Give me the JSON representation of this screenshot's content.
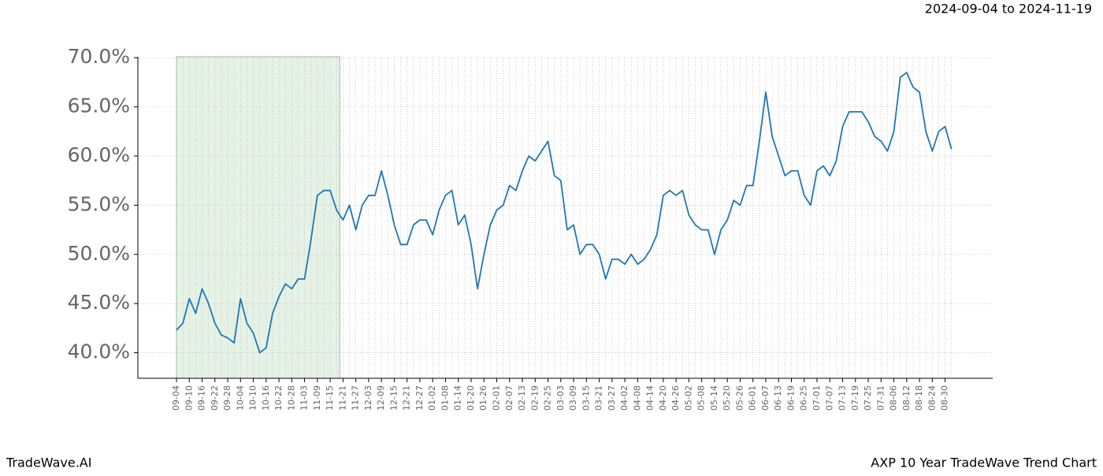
{
  "header": "2024-09-04 to 2024-11-19",
  "footer_left": "TradeWave.AI",
  "footer_right": "AXP 10 Year TradeWave Trend Chart",
  "chart_data": {
    "type": "line",
    "categories": [
      "09-04",
      null,
      "09-10",
      null,
      "09-16",
      null,
      "09-22",
      null,
      "09-28",
      null,
      "10-04",
      null,
      "10-10",
      null,
      "10-16",
      null,
      "10-22",
      null,
      "10-28",
      null,
      "11-03",
      null,
      "11-09",
      null,
      "11-15",
      null,
      "11-21",
      null,
      "11-27",
      null,
      "12-03",
      null,
      "12-09",
      null,
      "12-15",
      null,
      "12-21",
      null,
      "12-27",
      null,
      "01-02",
      null,
      "01-08",
      null,
      "01-14",
      null,
      "01-20",
      null,
      "01-26",
      null,
      "02-01",
      null,
      "02-07",
      null,
      "02-13",
      null,
      "02-19",
      null,
      "02-25",
      null,
      "03-03",
      null,
      "03-09",
      null,
      "03-15",
      null,
      "03-21",
      null,
      "03-27",
      null,
      "04-02",
      null,
      "04-08",
      null,
      "04-14",
      null,
      "04-20",
      null,
      "04-26",
      null,
      "05-02",
      null,
      "05-08",
      null,
      "05-14",
      null,
      "05-20",
      null,
      "05-26",
      null,
      "06-01",
      null,
      "06-07",
      null,
      "06-13",
      null,
      "06-19",
      null,
      "06-25",
      null,
      "07-01",
      null,
      "07-07",
      null,
      "07-13",
      null,
      "07-19",
      null,
      "07-25",
      null,
      "07-31",
      null,
      "08-06",
      null,
      "08-12",
      null,
      "08-18",
      null,
      "08-24",
      null,
      "08-30",
      null
    ],
    "values": [
      42.3,
      43,
      45.5,
      44,
      46.5,
      45,
      43,
      41.8,
      41.5,
      41,
      45.5,
      43,
      42,
      40,
      40.5,
      44,
      45.7,
      47,
      46.5,
      47.5,
      47.5,
      51.5,
      56,
      56.5,
      56.5,
      54.5,
      53.5,
      55,
      52.5,
      55,
      56,
      56,
      58.5,
      56,
      53,
      51,
      51,
      53,
      53.5,
      53.5,
      52,
      54.5,
      56,
      56.5,
      53,
      54,
      51,
      46.5,
      50,
      53,
      54.5,
      55,
      57,
      56.5,
      58.5,
      60,
      59.5,
      60.5,
      61.5,
      58,
      57.5,
      52.5,
      53,
      50,
      51,
      51,
      50,
      47.5,
      49.5,
      49.5,
      49,
      50,
      49,
      49.5,
      50.5,
      52,
      56,
      56.5,
      56,
      56.5,
      54,
      53,
      52.5,
      52.5,
      50,
      52.5,
      53.5,
      55.5,
      55,
      57,
      57,
      61.5,
      66.5,
      62,
      60,
      58,
      58.5,
      58.5,
      56,
      55,
      58.5,
      59,
      58,
      59.5,
      63,
      64.5,
      64.5,
      64.5,
      63.5,
      62,
      61.5,
      60.5,
      62.5,
      68,
      68.5,
      67,
      66.5,
      62.5,
      60.5,
      62.5,
      63,
      60.7
    ],
    "color": "#1f77b4",
    "highlight": [
      0,
      25.5
    ],
    "highlight_color": "#e6f2e6",
    "ylim": [
      37.4,
      70.1
    ],
    "yticks": [
      {
        "value": 40,
        "label": "40.0%"
      },
      {
        "value": 45,
        "label": "45.0%"
      },
      {
        "value": 50,
        "label": "50.0%"
      },
      {
        "value": 55,
        "label": "55.0%"
      },
      {
        "value": 60,
        "label": "60.0%"
      },
      {
        "value": 65,
        "label": "65.0%"
      },
      {
        "value": 70,
        "label": "70.0%"
      }
    ],
    "grid": true
  }
}
